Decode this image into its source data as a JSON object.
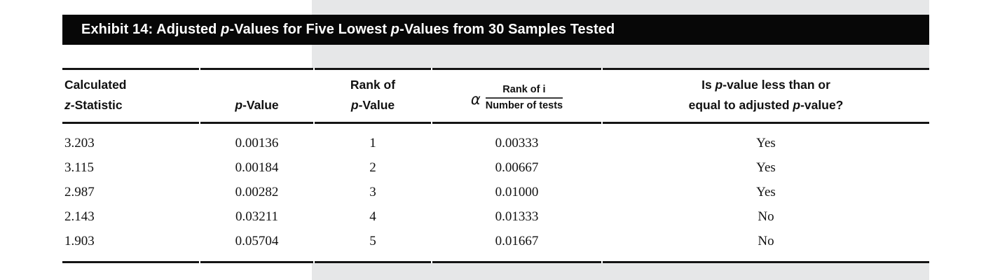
{
  "colors": {
    "accent_band": "#e6e7e8",
    "title_bar_bg": "#070707",
    "title_bar_text": "#ffffff",
    "rule": "#141414"
  },
  "title_bar": {
    "seg1": "Exhibit 14: Adjusted ",
    "seg2": "p",
    "seg3": "-Values for Five Lowest ",
    "seg4": "p",
    "seg5": "-Values from 30 Samples Tested"
  },
  "table": {
    "columns": {
      "c1": {
        "l1": "Calculated",
        "l2a": "z",
        "l2b": "-Statistic"
      },
      "c2": {
        "l1a": "p",
        "l1b": "-Value"
      },
      "c3": {
        "l1": "Rank of",
        "l2a": "p",
        "l2b": "-Value"
      },
      "c4": {
        "alpha": "α",
        "numerator": "Rank of i",
        "denominator": "Number of tests"
      },
      "c5": {
        "l1a": "Is ",
        "l1b": "p",
        "l1c": "-value less than or",
        "l2a": "equal to adjusted ",
        "l2b": "p",
        "l2c": "-value?"
      }
    },
    "rows": [
      [
        "3.203",
        "0.00136",
        "1",
        "0.00333",
        "Yes"
      ],
      [
        "3.115",
        "0.00184",
        "2",
        "0.00667",
        "Yes"
      ],
      [
        "2.987",
        "0.00282",
        "3",
        "0.01000",
        "Yes"
      ],
      [
        "2.143",
        "0.03211",
        "4",
        "0.01333",
        "No"
      ],
      [
        "1.903",
        "0.05704",
        "5",
        "0.01667",
        "No"
      ]
    ]
  }
}
